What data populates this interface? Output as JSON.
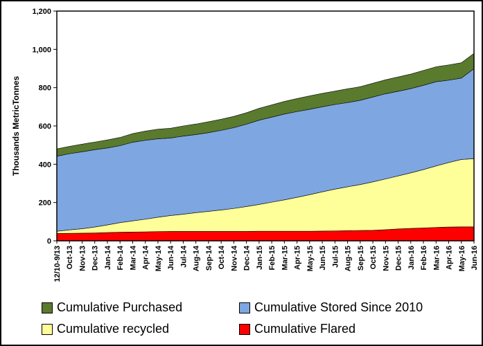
{
  "chart_data": {
    "type": "area",
    "stacked": true,
    "title": "",
    "xlabel": "",
    "ylabel": "Thousands MetricTonnes",
    "ylim": [
      0,
      1200
    ],
    "yticks": [
      0,
      200,
      400,
      600,
      800,
      1000,
      1200
    ],
    "ytick_labels": [
      "0",
      "200",
      "400",
      "600",
      "800",
      "1,000",
      "1,200"
    ],
    "grid": false,
    "legend_position": "bottom",
    "categories": [
      "12/10-9/13",
      "Oct-13",
      "Nov-13",
      "Dec-13",
      "Jan-14",
      "Feb-14",
      "Mar-14",
      "Apr-14",
      "May-14",
      "Jun-14",
      "Jul-14",
      "Aug-14",
      "Sep-14",
      "Oct-14",
      "Nov-14",
      "Dec-14",
      "Jan-15",
      "Feb-15",
      "Mar-15",
      "Apr-15",
      "May-15",
      "Jun-15",
      "Jul-15",
      "Aug-15",
      "Sep-15",
      "Oct-15",
      "Nov-15",
      "Dec-15",
      "Jan-16",
      "Feb-16",
      "Mar-16",
      "Apr-16",
      "May-16",
      "Jun-16"
    ],
    "series": [
      {
        "name": "Cumulative Flared",
        "color": "#ff0000",
        "values": [
          38,
          39,
          40,
          41,
          43,
          45,
          46,
          47,
          48,
          49,
          49,
          49,
          49,
          49,
          49,
          49,
          50,
          50,
          50,
          50,
          50,
          51,
          52,
          53,
          54,
          55,
          58,
          62,
          65,
          67,
          70,
          72,
          73,
          73
        ]
      },
      {
        "name": "Cumulative recycled",
        "color": "#ffff99",
        "values": [
          12,
          18,
          23,
          31,
          40,
          50,
          58,
          66,
          75,
          83,
          90,
          98,
          105,
          112,
          120,
          130,
          140,
          152,
          164,
          177,
          191,
          205,
          218,
          229,
          240,
          253,
          265,
          277,
          290,
          305,
          321,
          337,
          352,
          356
        ]
      },
      {
        "name": "Cumulative Stored Since 2010",
        "color": "#7ea6e0",
        "values": [
          392,
          398,
          402,
          404,
          402,
          402,
          411,
          412,
          410,
          405,
          408,
          408,
          411,
          416,
          422,
          430,
          440,
          444,
          448,
          448,
          446,
          444,
          442,
          440,
          440,
          443,
          445,
          442,
          440,
          440,
          440,
          430,
          425,
          470
        ]
      },
      {
        "name": "Cumulative Purchased",
        "color": "#5a7a2e",
        "values": [
          38,
          38,
          40,
          40,
          42,
          43,
          45,
          48,
          50,
          51,
          53,
          55,
          57,
          58,
          59,
          60,
          62,
          64,
          66,
          68,
          70,
          70,
          70,
          72,
          71,
          72,
          73,
          75,
          76,
          78,
          78,
          80,
          80,
          80
        ]
      }
    ]
  }
}
